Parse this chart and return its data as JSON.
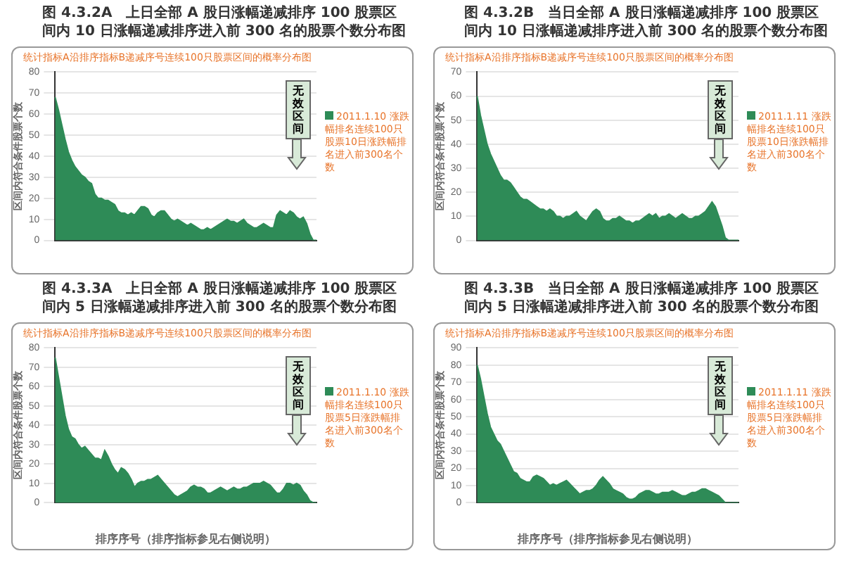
{
  "chart_data": [
    {
      "type": "area",
      "title": "图 4.3.2A　上日全部 A 股日涨幅递减排序 100 股票区间内 10 日涨幅递减排序进入前 300 名的股票个数分布图",
      "subtitle": "统计指标A沿排序指标B递减序号连续100只股票区间的概率分布图",
      "ylabel": "区间内符合条件股票个数",
      "annotations": [
        "无效区间"
      ],
      "categories": [
        null,
        null,
        null,
        null,
        null,
        null,
        null,
        null,
        null,
        null,
        null,
        null,
        null,
        null,
        null,
        null,
        null,
        null,
        null,
        null,
        null,
        null,
        null,
        null,
        null,
        null,
        null,
        null,
        null,
        null,
        null,
        null,
        null,
        null,
        null,
        null,
        null,
        null,
        null,
        null,
        null,
        null,
        null,
        null,
        null,
        null,
        null,
        null,
        null,
        null,
        null,
        null,
        null,
        null,
        null,
        null,
        null,
        null,
        null,
        null,
        null,
        null,
        null,
        null,
        null,
        null,
        null,
        null,
        null,
        null,
        null,
        null,
        null,
        null,
        null,
        null,
        null,
        null,
        null,
        null
      ],
      "series": [
        {
          "name": "2011.1.10 涨跌幅排名连续100只股票10日涨跌幅排名进入前300名个数",
          "color": "#2e8b57",
          "values": [
            68,
            62,
            55,
            48,
            42,
            38,
            35,
            33,
            31,
            30,
            28,
            27,
            22,
            20,
            20,
            19,
            19,
            18,
            17,
            14,
            13,
            13,
            12,
            13,
            12,
            14,
            16,
            16,
            15,
            12,
            11,
            13,
            14,
            14,
            12,
            10,
            9,
            10,
            9,
            8,
            7,
            8,
            7,
            6,
            5,
            5,
            6,
            5,
            6,
            7,
            8,
            9,
            10,
            9,
            9,
            8,
            9,
            10,
            8,
            7,
            6,
            6,
            7,
            8,
            7,
            6,
            6,
            12,
            14,
            13,
            12,
            14,
            13,
            11,
            10,
            11,
            8,
            3,
            0,
            0
          ]
        }
      ],
      "ylim": [
        0,
        80
      ],
      "yticks": [
        0,
        10,
        20,
        30,
        40,
        50,
        60,
        70,
        80
      ],
      "grid": "y",
      "legend": "right"
    },
    {
      "type": "area",
      "title": "图 4.3.2B　当日全部 A 股日涨幅递减排序 100 股票区间内 10 日涨幅递减排序进入前 300 名的股票个数分布图",
      "subtitle": "统计指标A沿排序指标B递减序号连续100只股票区间的概率分布图",
      "ylabel": "区间内符合条件股票个数",
      "annotations": [
        "无效区间"
      ],
      "categories": [
        null,
        null,
        null,
        null,
        null,
        null,
        null,
        null,
        null,
        null,
        null,
        null,
        null,
        null,
        null,
        null,
        null,
        null,
        null,
        null,
        null,
        null,
        null,
        null,
        null,
        null,
        null,
        null,
        null,
        null,
        null,
        null,
        null,
        null,
        null,
        null,
        null,
        null,
        null,
        null,
        null,
        null,
        null,
        null,
        null,
        null,
        null,
        null,
        null,
        null,
        null,
        null,
        null,
        null,
        null,
        null,
        null,
        null,
        null,
        null,
        null,
        null,
        null,
        null,
        null,
        null,
        null,
        null,
        null,
        null,
        null,
        null,
        null,
        null,
        null,
        null,
        null,
        null,
        null,
        null
      ],
      "series": [
        {
          "name": "2011.1.11 涨跌幅排名连续100只股票10日涨跌幅排名进入前300名个数",
          "color": "#2e8b57",
          "values": [
            60,
            52,
            46,
            40,
            36,
            33,
            30,
            27,
            25,
            25,
            24,
            22,
            20,
            18,
            17,
            17,
            16,
            15,
            14,
            13,
            13,
            12,
            13,
            12,
            10,
            10,
            9,
            10,
            10,
            11,
            12,
            10,
            9,
            8,
            10,
            12,
            13,
            12,
            9,
            8,
            8,
            9,
            9,
            10,
            9,
            8,
            8,
            7,
            8,
            8,
            9,
            10,
            11,
            10,
            11,
            9,
            10,
            10,
            11,
            10,
            9,
            10,
            11,
            10,
            9,
            9,
            10,
            10,
            11,
            12,
            14,
            16,
            14,
            10,
            6,
            1,
            0,
            0,
            0,
            0
          ]
        }
      ],
      "ylim": [
        0,
        70
      ],
      "yticks": [
        0,
        10,
        20,
        30,
        40,
        50,
        60,
        70
      ],
      "grid": "y",
      "legend": "right"
    },
    {
      "type": "area",
      "title": "图 4.3.3A　上日全部 A 股日涨幅递减排序 100 股票区间内 5 日涨幅递减排序进入前 300 名的股票个数分布图",
      "subtitle": "统计指标A沿排序指标B递减序号连续100只股票区间的概率分布图",
      "xlabel": "排序序号（排序指标参见右侧说明）",
      "ylabel": "区间内符合条件股票个数",
      "annotations": [
        "无效区间"
      ],
      "categories": [
        null,
        null,
        null,
        null,
        null,
        null,
        null,
        null,
        null,
        null,
        null,
        null,
        null,
        null,
        null,
        null,
        null,
        null,
        null,
        null,
        null,
        null,
        null,
        null,
        null,
        null,
        null,
        null,
        null,
        null,
        null,
        null,
        null,
        null,
        null,
        null,
        null,
        null,
        null,
        null,
        null,
        null,
        null,
        null,
        null,
        null,
        null,
        null,
        null,
        null,
        null,
        null,
        null,
        null,
        null,
        null,
        null,
        null,
        null,
        null,
        null,
        null,
        null,
        null,
        null,
        null,
        null,
        null,
        null,
        null,
        null,
        null,
        null,
        null,
        null,
        null,
        null,
        null,
        null,
        null
      ],
      "series": [
        {
          "name": "2011.1.10 涨跌幅排名连续100只股票5日涨跌幅排名进入前300名个数",
          "color": "#2e8b57",
          "values": [
            75,
            65,
            55,
            45,
            38,
            34,
            33,
            30,
            28,
            29,
            27,
            25,
            23,
            23,
            22,
            27,
            24,
            20,
            17,
            15,
            18,
            17,
            15,
            12,
            8,
            10,
            11,
            11,
            12,
            12,
            13,
            14,
            12,
            10,
            8,
            6,
            4,
            3,
            4,
            5,
            6,
            8,
            9,
            8,
            8,
            7,
            5,
            5,
            6,
            7,
            8,
            7,
            6,
            7,
            8,
            7,
            7,
            8,
            8,
            9,
            10,
            10,
            10,
            11,
            10,
            9,
            7,
            5,
            5,
            7,
            10,
            10,
            9,
            10,
            9,
            6,
            4,
            1,
            0,
            0
          ]
        }
      ],
      "ylim": [
        0,
        80
      ],
      "yticks": [
        0,
        10,
        20,
        30,
        40,
        50,
        60,
        70,
        80
      ],
      "grid": "y",
      "legend": "right"
    },
    {
      "type": "area",
      "title": "图 4.3.3B　当日全部 A 股日涨幅递减排序 100 股票区间内 5 日涨幅递减排序进入前 300 名的股票个数分布图",
      "subtitle": "统计指标A沿排序指标B递减序号连续100只股票区间的概率分布图",
      "xlabel": "排序序号（排序指标参见右侧说明）",
      "ylabel": "区间内符合条件股票个数",
      "annotations": [
        "无效区间"
      ],
      "categories": [
        null,
        null,
        null,
        null,
        null,
        null,
        null,
        null,
        null,
        null,
        null,
        null,
        null,
        null,
        null,
        null,
        null,
        null,
        null,
        null,
        null,
        null,
        null,
        null,
        null,
        null,
        null,
        null,
        null,
        null,
        null,
        null,
        null,
        null,
        null,
        null,
        null,
        null,
        null,
        null,
        null,
        null,
        null,
        null,
        null,
        null,
        null,
        null,
        null,
        null,
        null,
        null,
        null,
        null,
        null,
        null,
        null,
        null,
        null,
        null,
        null,
        null,
        null,
        null,
        null,
        null,
        null,
        null,
        null,
        null,
        null,
        null,
        null,
        null,
        null,
        null,
        null,
        null,
        null,
        null
      ],
      "series": [
        {
          "name": "2011.1.11 涨跌幅排名连续100只股票5日涨跌幅排名进入前300名个数",
          "color": "#2e8b57",
          "values": [
            80,
            72,
            62,
            52,
            44,
            40,
            36,
            34,
            30,
            26,
            22,
            18,
            17,
            14,
            13,
            12,
            12,
            15,
            16,
            15,
            14,
            12,
            10,
            11,
            10,
            11,
            12,
            13,
            11,
            9,
            7,
            5,
            6,
            7,
            7,
            8,
            10,
            13,
            15,
            13,
            11,
            8,
            7,
            6,
            5,
            3,
            2,
            2,
            3,
            5,
            6,
            7,
            7,
            6,
            5,
            5,
            6,
            6,
            6,
            7,
            6,
            5,
            4,
            4,
            5,
            6,
            6,
            7,
            8,
            8,
            7,
            6,
            5,
            4,
            2,
            0,
            0,
            0,
            0,
            0
          ]
        }
      ],
      "ylim": [
        0,
        90
      ],
      "yticks": [
        0,
        10,
        20,
        30,
        40,
        50,
        60,
        70,
        80,
        90
      ],
      "grid": "y",
      "legend": "right"
    }
  ]
}
